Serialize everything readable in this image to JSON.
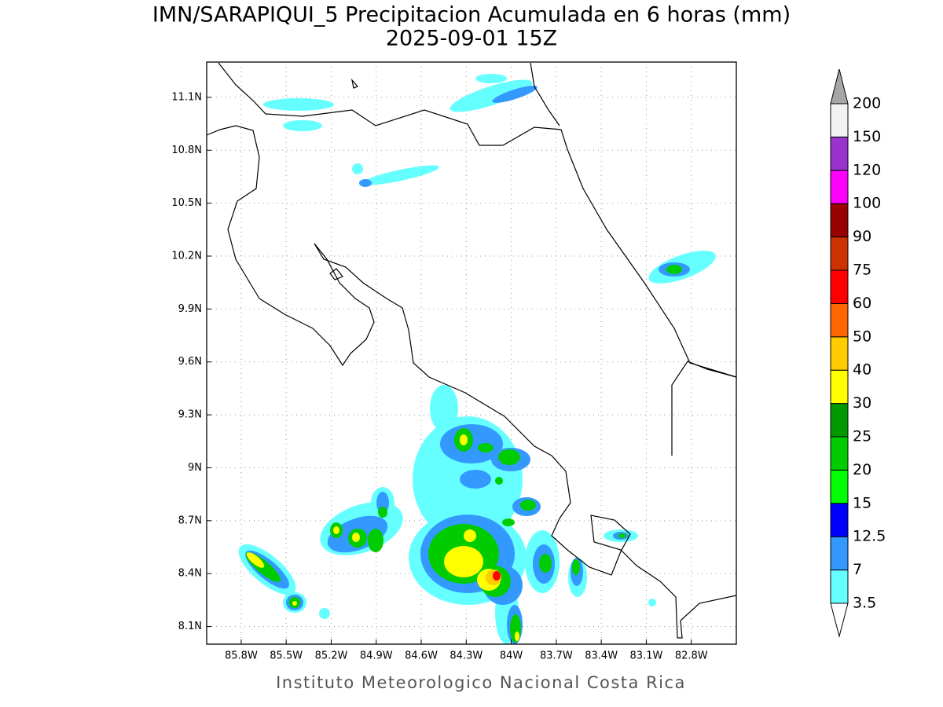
{
  "title": "IMN/SARAPIQUI_5 Precipitacion Acumulada en 6 horas (mm)",
  "subtitle": "2025-09-01 15Z",
  "footer": "Instituto Meteorologico Nacional Costa Rica",
  "map": {
    "xlim": [
      -86.03,
      -82.5
    ],
    "ylim": [
      8.0,
      11.3
    ],
    "xticks": [
      {
        "value": -85.8,
        "label": "85.8W"
      },
      {
        "value": -85.5,
        "label": "85.5W"
      },
      {
        "value": -85.2,
        "label": "85.2W"
      },
      {
        "value": -84.9,
        "label": "84.9W"
      },
      {
        "value": -84.6,
        "label": "84.6W"
      },
      {
        "value": -84.3,
        "label": "84.3W"
      },
      {
        "value": -84,
        "label": "84W"
      },
      {
        "value": -83.7,
        "label": "83.7W"
      },
      {
        "value": -83.4,
        "label": "83.4W"
      },
      {
        "value": -83.1,
        "label": "83.1W"
      },
      {
        "value": -82.8,
        "label": "82.8W"
      }
    ],
    "yticks": [
      {
        "value": 11.1,
        "label": "11.1N"
      },
      {
        "value": 10.8,
        "label": "10.8N"
      },
      {
        "value": 10.5,
        "label": "10.5N"
      },
      {
        "value": 10.2,
        "label": "10.2N"
      },
      {
        "value": 9.9,
        "label": "9.9N"
      },
      {
        "value": 9.6,
        "label": "9.6N"
      },
      {
        "value": 9.3,
        "label": "9.3N"
      },
      {
        "value": 9,
        "label": "9N"
      },
      {
        "value": 8.7,
        "label": "8.7N"
      },
      {
        "value": 8.4,
        "label": "8.4N"
      },
      {
        "value": 8.1,
        "label": "8.1N"
      }
    ],
    "grid": true
  },
  "colorbar": {
    "levels": [
      3.5,
      7,
      12.5,
      15,
      20,
      25,
      30,
      40,
      50,
      60,
      75,
      90,
      100,
      120,
      150,
      200
    ],
    "colors": [
      "#66ffff",
      "#3399ff",
      "#0000ff",
      "#00ff00",
      "#00cc00",
      "#009900",
      "#ffff00",
      "#ffcc00",
      "#ff6600",
      "#ff0000",
      "#cc3300",
      "#990000",
      "#ff00ff",
      "#9933cc",
      "#f2f2f2"
    ],
    "over_color": "#a6a6a6",
    "under_color": "#ffffff"
  }
}
